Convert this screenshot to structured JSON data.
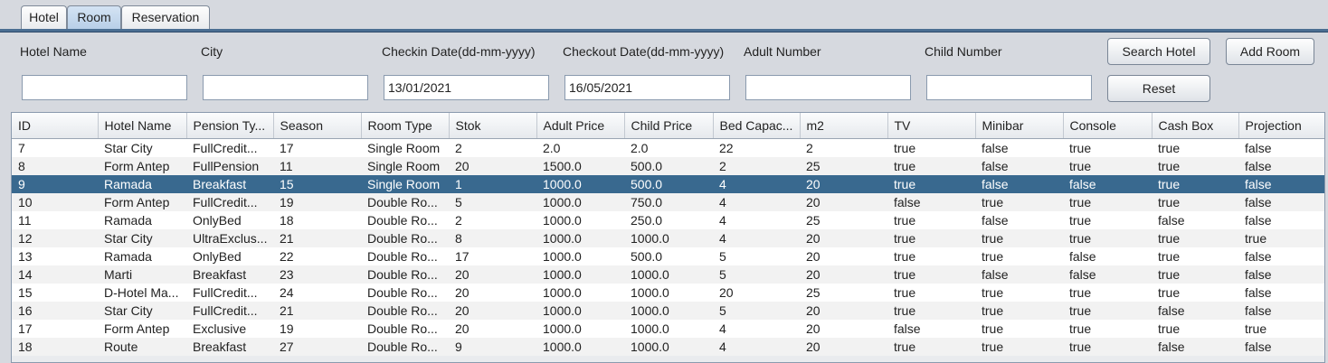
{
  "tabs": [
    {
      "label": "Hotel",
      "selected": false
    },
    {
      "label": "Room",
      "selected": true
    },
    {
      "label": "Reservation",
      "selected": false
    }
  ],
  "form": {
    "hotel_name_label": "Hotel Name",
    "city_label": "City",
    "checkin_label": "Checkin Date(dd-mm-yyyy)",
    "checkout_label": "Checkout Date(dd-mm-yyyy)",
    "adult_label": "Adult Number",
    "child_label": "Child Number",
    "hotel_name_value": "",
    "city_value": "",
    "checkin_value": "13/01/2021",
    "checkout_value": "16/05/2021",
    "adult_value": "",
    "child_value": "",
    "search_button": "Search Hotel",
    "add_room_button": "Add Room",
    "reset_button": "Reset"
  },
  "table": {
    "columns": [
      "ID",
      "Hotel Name",
      "Pension Ty...",
      "Season",
      "Room Type",
      "Stok",
      "Adult Price",
      "Child Price",
      "Bed Capac...",
      "m2",
      "TV",
      "Minibar",
      "Console",
      "Cash Box",
      "Projection"
    ],
    "selected_row": 2,
    "selected_color": "#39698f",
    "rows": [
      [
        "7",
        "Star City",
        "FullCredit...",
        "17",
        "Single Room",
        "2",
        "2.0",
        "2.0",
        "22",
        "2",
        "true",
        "false",
        "true",
        "true",
        "false"
      ],
      [
        "8",
        "Form Antep",
        "FullPension",
        "11",
        "Single Room",
        "20",
        "1500.0",
        "500.0",
        "2",
        "25",
        "true",
        "false",
        "true",
        "true",
        "false"
      ],
      [
        "9",
        "Ramada",
        "Breakfast",
        "15",
        "Single Room",
        "1",
        "1000.0",
        "500.0",
        "4",
        "20",
        "true",
        "false",
        "false",
        "true",
        "false"
      ],
      [
        "10",
        "Form Antep",
        "FullCredit...",
        "19",
        "Double Ro...",
        "5",
        "1000.0",
        "750.0",
        "4",
        "20",
        "false",
        "true",
        "true",
        "true",
        "false"
      ],
      [
        "11",
        "Ramada",
        "OnlyBed",
        "18",
        "Double Ro...",
        "2",
        "1000.0",
        "250.0",
        "4",
        "25",
        "true",
        "false",
        "true",
        "false",
        "false"
      ],
      [
        "12",
        "Star City",
        "UltraExclus...",
        "21",
        "Double Ro...",
        "8",
        "1000.0",
        "1000.0",
        "4",
        "20",
        "true",
        "true",
        "true",
        "true",
        "true"
      ],
      [
        "13",
        "Ramada",
        "OnlyBed",
        "22",
        "Double Ro...",
        "17",
        "1000.0",
        "500.0",
        "5",
        "20",
        "true",
        "true",
        "false",
        "true",
        "false"
      ],
      [
        "14",
        "Marti",
        "Breakfast",
        "23",
        "Double Ro...",
        "20",
        "1000.0",
        "1000.0",
        "5",
        "20",
        "true",
        "false",
        "false",
        "true",
        "false"
      ],
      [
        "15",
        "D-Hotel Ma...",
        "FullCredit...",
        "24",
        "Double Ro...",
        "20",
        "1000.0",
        "1000.0",
        "20",
        "25",
        "true",
        "true",
        "true",
        "true",
        "false"
      ],
      [
        "16",
        "Star City",
        "FullCredit...",
        "21",
        "Double Ro...",
        "20",
        "1000.0",
        "1000.0",
        "5",
        "20",
        "true",
        "true",
        "true",
        "false",
        "false"
      ],
      [
        "17",
        "Form Antep",
        "Exclusive",
        "19",
        "Double Ro...",
        "20",
        "1000.0",
        "1000.0",
        "4",
        "20",
        "false",
        "true",
        "true",
        "true",
        "true"
      ],
      [
        "18",
        "Route",
        "Breakfast",
        "27",
        "Double Ro...",
        "9",
        "1000.0",
        "1000.0",
        "4",
        "20",
        "true",
        "true",
        "true",
        "false",
        "false"
      ]
    ]
  }
}
